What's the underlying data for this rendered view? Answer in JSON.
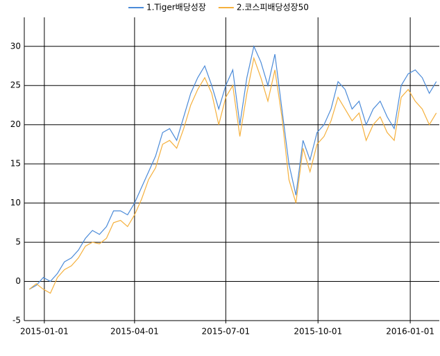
{
  "chart_data": {
    "type": "line",
    "x": [
      "2014-12-17",
      "2014-12-24",
      "2014-12-31",
      "2015-01-07",
      "2015-01-14",
      "2015-01-21",
      "2015-01-28",
      "2015-02-04",
      "2015-02-11",
      "2015-02-18",
      "2015-02-25",
      "2015-03-04",
      "2015-03-11",
      "2015-03-18",
      "2015-03-25",
      "2015-04-01",
      "2015-04-08",
      "2015-04-15",
      "2015-04-22",
      "2015-04-29",
      "2015-05-06",
      "2015-05-13",
      "2015-05-20",
      "2015-05-27",
      "2015-06-03",
      "2015-06-10",
      "2015-06-17",
      "2015-06-24",
      "2015-07-01",
      "2015-07-08",
      "2015-07-15",
      "2015-07-22",
      "2015-07-29",
      "2015-08-05",
      "2015-08-12",
      "2015-08-19",
      "2015-08-26",
      "2015-09-02",
      "2015-09-09",
      "2015-09-16",
      "2015-09-23",
      "2015-09-30",
      "2015-10-07",
      "2015-10-14",
      "2015-10-21",
      "2015-10-28",
      "2015-11-04",
      "2015-11-11",
      "2015-11-18",
      "2015-11-25",
      "2015-12-02",
      "2015-12-09",
      "2015-12-16",
      "2015-12-23",
      "2015-12-30",
      "2016-01-06",
      "2016-01-13",
      "2016-01-20",
      "2016-01-27"
    ],
    "series": [
      {
        "name": "1.Tiger배당성장",
        "color": "#4a8ad8",
        "values": [
          -1,
          -0.5,
          0.5,
          0,
          1,
          2.5,
          3,
          4,
          5.5,
          6.5,
          6,
          7,
          9,
          9,
          8.5,
          10,
          12,
          14,
          16,
          19,
          19.5,
          18,
          21,
          24,
          26,
          27.5,
          25,
          22,
          25,
          27,
          20,
          26,
          30,
          28,
          25,
          29,
          22,
          15,
          11,
          18,
          15.5,
          19,
          20,
          22,
          25.5,
          24.5,
          22,
          23,
          20,
          22,
          23,
          21,
          19.5,
          25,
          26.5,
          27,
          26,
          24,
          25.5
        ]
      },
      {
        "name": "2.코스피배당성장50",
        "color": "#f5b03c",
        "values": [
          -1,
          -0.3,
          -1,
          -1.5,
          0.5,
          1.5,
          2,
          3,
          4.5,
          5,
          4.8,
          5.5,
          7.5,
          7.8,
          7,
          8.5,
          10.5,
          13,
          14.5,
          17.5,
          18,
          17,
          19.5,
          22.5,
          24.5,
          26,
          24,
          20,
          23.5,
          25,
          18.5,
          24,
          28.5,
          26,
          23,
          27,
          21,
          13,
          10,
          17,
          14,
          17.5,
          18.5,
          20.5,
          23.5,
          22,
          20.5,
          21.5,
          18,
          20,
          21,
          19,
          18,
          23.5,
          24.5,
          23,
          22,
          20,
          21.5
        ]
      }
    ],
    "xlim": [
      "2014-12-12",
      "2016-01-30"
    ],
    "xticks": [
      "2015-01-01",
      "2015-04-01",
      "2015-07-01",
      "2015-10-01",
      "2016-01-01"
    ],
    "ylim": [
      -5,
      33.7
    ],
    "yticks": [
      -5,
      0,
      5,
      10,
      15,
      20,
      25,
      30
    ],
    "grid": true
  }
}
